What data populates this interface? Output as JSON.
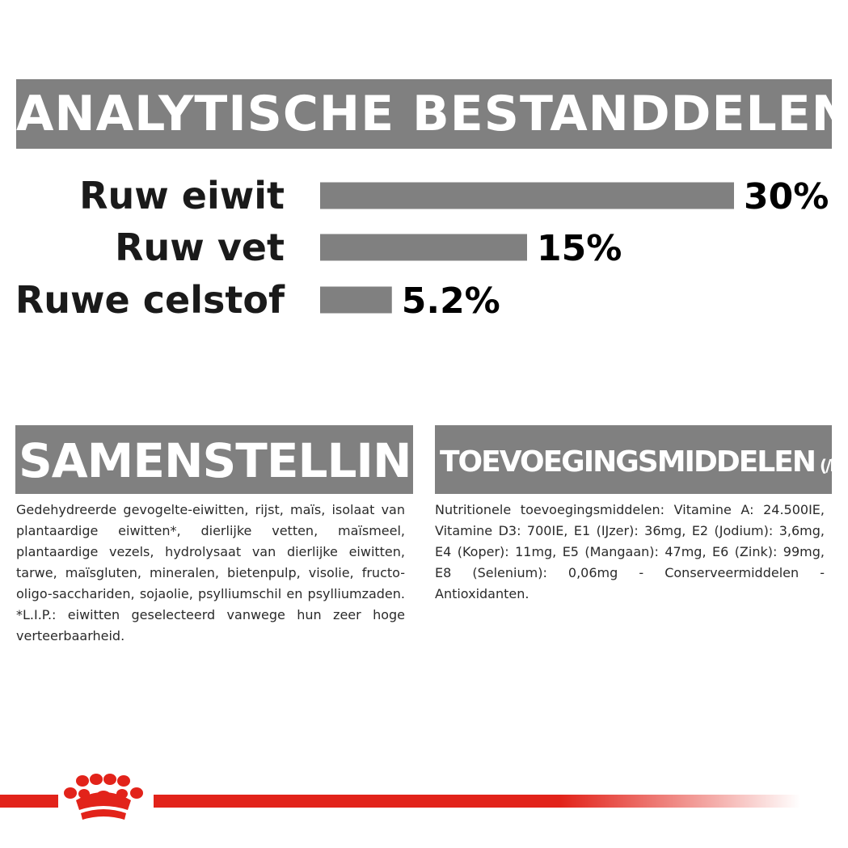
{
  "analytic_heading": "ANALYTISCHE BESTANDDELEN",
  "chart_data": {
    "type": "bar",
    "orientation": "horizontal",
    "categories": [
      "Ruw eiwit",
      "Ruw vet",
      "Ruwe celstof"
    ],
    "values": [
      30,
      15,
      5.2
    ],
    "value_labels": [
      "30%",
      "15%",
      "5.2%"
    ],
    "unit": "%",
    "xlim": [
      0,
      30
    ],
    "bar_color": "#808080",
    "grid": false,
    "legend": "none"
  },
  "samenstelling": {
    "heading": "SAMENSTELLING",
    "text": "Gedehydreerde gevogelte-eiwitten, rijst, maïs, isolaat van plantaardige eiwitten*, dierlijke vetten, maïsmeel, plantaardige vezels, hydrolysaat van dierlijke eiwitten, tarwe, maïsgluten, mineralen, bietenpulp, visolie, fructo-oligo-sacchariden, sojaolie, psylliumschil en psylliumzaden. *L.I.P.: eiwitten geselecteerd vanwege hun zeer hoge verteerbaarheid."
  },
  "toevoegingsmiddelen": {
    "heading": "TOEVOEGINGSMIDDELEN",
    "unit": "(/kg)",
    "text": "Nutritionele toevoegingsmiddelen: Vitamine A: 24.500IE, Vitamine D3: 700IE, E1 (IJzer): 36mg, E2 (Jodium): 3,6mg, E4 (Koper): 11mg, E5 (Mangaan): 47mg, E6 (Zink): 99mg, E8 (Selenium): 0,06mg - Conserveermiddelen - Antioxidanten."
  },
  "colors": {
    "banner": "#808080",
    "brand_red": "#e2231a"
  },
  "logo_icon": "royal-canin-crown-icon"
}
